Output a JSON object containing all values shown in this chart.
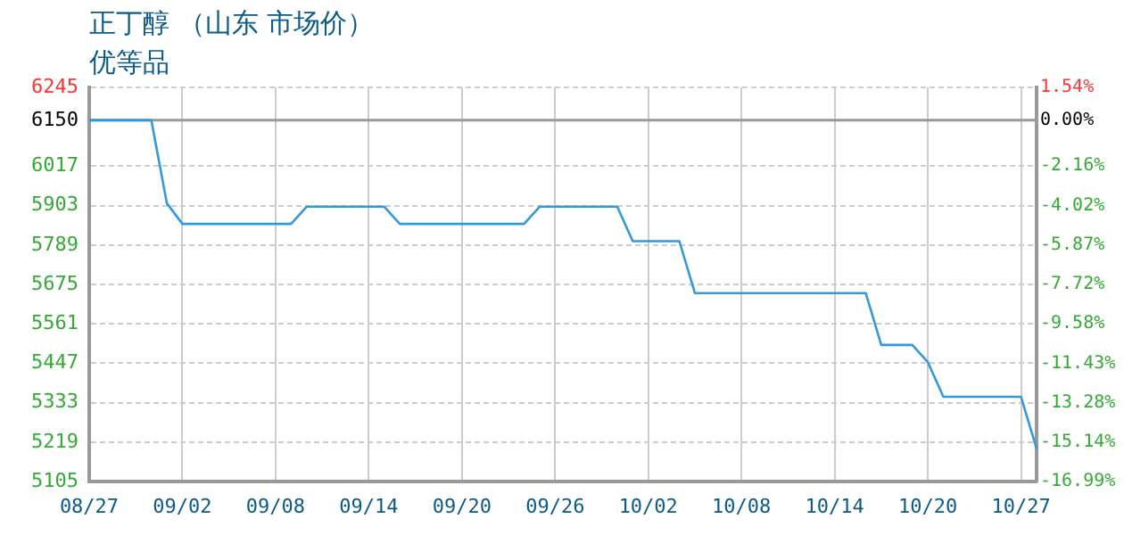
{
  "chart_data": {
    "type": "line",
    "title": "正丁醇 （山东 市场价）",
    "subtitle": "优等品",
    "categories": [
      "08/27",
      null,
      null,
      null,
      null,
      null,
      "09/02",
      null,
      null,
      null,
      null,
      null,
      "09/08",
      null,
      null,
      null,
      null,
      null,
      "09/14",
      null,
      null,
      null,
      null,
      null,
      "09/20",
      null,
      null,
      null,
      null,
      null,
      "09/26",
      null,
      null,
      null,
      null,
      null,
      "10/02",
      null,
      null,
      null,
      null,
      null,
      "10/08",
      null,
      null,
      null,
      null,
      null,
      "10/14",
      null,
      null,
      null,
      null,
      null,
      "10/20",
      null,
      null,
      null,
      null,
      null,
      "10/27",
      null
    ],
    "series": [
      {
        "color": "#3399dd",
        "values": [
          6150,
          6150,
          6150,
          6150,
          6150,
          5910,
          5850,
          5850,
          5850,
          5850,
          5850,
          5850,
          5850,
          5850,
          5900,
          5900,
          5900,
          5900,
          5900,
          5900,
          5850,
          5850,
          5850,
          5850,
          5850,
          5850,
          5850,
          5850,
          5850,
          5900,
          5900,
          5900,
          5900,
          5900,
          5900,
          5800,
          5800,
          5800,
          5800,
          5650,
          5650,
          5650,
          5650,
          5650,
          5650,
          5650,
          5650,
          5650,
          5650,
          5650,
          5650,
          5500,
          5500,
          5500,
          5450,
          5350,
          5350,
          5350,
          5350,
          5350,
          5350,
          5200
        ]
      }
    ],
    "ylim": [
      5105,
      6245
    ],
    "yticks": [
      5105,
      5219,
      5333,
      5447,
      5561,
      5675,
      5789,
      5903,
      6017,
      6150,
      6245
    ],
    "y2lim": [
      -16.99,
      1.54
    ],
    "y2ticks": [
      {
        "value": -16.99,
        "label": "-16.99%"
      },
      {
        "value": -15.14,
        "label": "-15.14%"
      },
      {
        "value": -13.28,
        "label": "-13.28%"
      },
      {
        "value": -11.43,
        "label": "-11.43%"
      },
      {
        "value": -9.58,
        "label": "-9.58%"
      },
      {
        "value": -7.72,
        "label": "-7.72%"
      },
      {
        "value": -5.87,
        "label": "-5.87%"
      },
      {
        "value": -4.02,
        "label": "-4.02%"
      },
      {
        "value": -2.16,
        "label": "-2.16%"
      },
      {
        "value": 0,
        "label": "0.00%"
      },
      {
        "value": 1.54,
        "label": "1.54%"
      }
    ],
    "ref_lines": [
      {
        "axis": "y",
        "value": 6150,
        "color": "#999999"
      }
    ],
    "grid": true,
    "legend": false,
    "marker": "none",
    "line_style": "solid"
  }
}
